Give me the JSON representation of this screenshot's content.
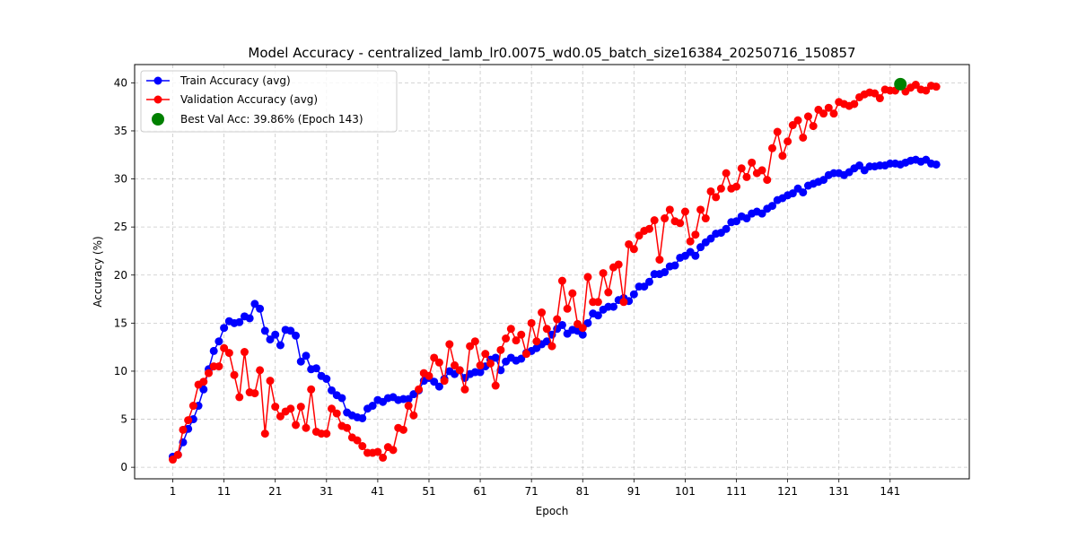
{
  "chart_data": {
    "type": "line",
    "title": "Model Accuracy - centralized_lamb_lr0.0075_wd0.05_batch_size16384_20250716_150857",
    "xlabel": "Epoch",
    "ylabel": "Accuracy (%)",
    "xlim": [
      -6.45,
      156.45
    ],
    "ylim": [
      -1.2,
      41.9
    ],
    "x_ticks": [
      1,
      11,
      21,
      31,
      41,
      51,
      61,
      71,
      81,
      91,
      101,
      111,
      121,
      131,
      141
    ],
    "y_ticks": [
      0,
      5,
      10,
      15,
      20,
      25,
      30,
      35,
      40
    ],
    "grid": true,
    "legend_position": "top-left",
    "series": [
      {
        "name": "Train Accuracy (avg)",
        "color": "#0000ff",
        "values": [
          1.1,
          1.3,
          2.6,
          4.0,
          5.0,
          6.4,
          8.1,
          10.2,
          12.1,
          13.1,
          14.5,
          15.2,
          15.0,
          15.1,
          15.7,
          15.5,
          17.0,
          16.5,
          14.2,
          13.3,
          13.8,
          12.7,
          14.3,
          14.2,
          13.7,
          11.0,
          11.6,
          10.2,
          10.3,
          9.5,
          9.2,
          8.0,
          7.5,
          7.2,
          5.7,
          5.4,
          5.2,
          5.1,
          6.1,
          6.4,
          7.0,
          6.8,
          7.2,
          7.3,
          7.0,
          7.1,
          7.1,
          7.6,
          8.0,
          9.0,
          9.3,
          8.9,
          8.4,
          9.2,
          10.0,
          9.7,
          10.1,
          9.3,
          9.7,
          9.9,
          9.9,
          10.5,
          11.2,
          11.4,
          10.1,
          11.0,
          11.4,
          11.1,
          11.3,
          11.9,
          12.1,
          12.4,
          12.8,
          13.1,
          13.8,
          14.4,
          14.8,
          13.9,
          14.3,
          14.2,
          13.8,
          15.0,
          16.0,
          15.8,
          16.4,
          16.7,
          16.7,
          17.4,
          17.6,
          17.3,
          18.0,
          18.8,
          18.8,
          19.3,
          20.1,
          20.1,
          20.3,
          20.9,
          21.0,
          21.8,
          22.0,
          22.4,
          22.0,
          22.9,
          23.4,
          23.8,
          24.3,
          24.4,
          24.8,
          25.5,
          25.6,
          26.1,
          25.9,
          26.4,
          26.6,
          26.4,
          26.9,
          27.2,
          27.8,
          28.0,
          28.3,
          28.5,
          29.0,
          28.6,
          29.3,
          29.5,
          29.7,
          29.9,
          30.4,
          30.6,
          30.6,
          30.4,
          30.7,
          31.1,
          31.4,
          30.9,
          31.3,
          31.3,
          31.4,
          31.4,
          31.6,
          31.6,
          31.5,
          31.7,
          31.9,
          32.0,
          31.8,
          32.0,
          31.6,
          31.5
        ]
      },
      {
        "name": "Validation Accuracy (avg)",
        "color": "#ff0000",
        "values": [
          0.8,
          1.3,
          3.9,
          4.9,
          6.4,
          8.6,
          8.9,
          9.8,
          10.5,
          10.5,
          12.4,
          11.9,
          9.6,
          7.3,
          12.0,
          7.8,
          7.7,
          10.1,
          3.5,
          9.0,
          6.3,
          5.3,
          5.8,
          6.1,
          4.4,
          6.3,
          4.1,
          8.1,
          3.7,
          3.5,
          3.5,
          6.1,
          5.6,
          4.3,
          4.1,
          3.1,
          2.8,
          2.2,
          1.5,
          1.5,
          1.6,
          1.0,
          2.1,
          1.8,
          4.1,
          3.9,
          6.4,
          5.4,
          8.1,
          9.8,
          9.5,
          11.4,
          10.9,
          9.0,
          12.8,
          10.6,
          10.1,
          8.1,
          12.6,
          13.1,
          10.6,
          11.8,
          10.8,
          8.5,
          12.2,
          13.4,
          14.4,
          13.2,
          13.8,
          11.8,
          15.0,
          13.1,
          16.1,
          14.4,
          12.6,
          15.4,
          19.4,
          16.5,
          18.1,
          14.9,
          14.5,
          19.8,
          17.2,
          17.2,
          20.2,
          18.2,
          20.8,
          21.1,
          17.2,
          23.2,
          22.7,
          24.1,
          24.6,
          24.8,
          25.7,
          21.6,
          25.9,
          26.8,
          25.6,
          25.4,
          26.6,
          23.5,
          24.2,
          26.8,
          25.9,
          28.7,
          28.1,
          29.0,
          30.6,
          29.0,
          29.2,
          31.1,
          30.2,
          31.7,
          30.6,
          30.9,
          29.9,
          33.2,
          34.9,
          32.4,
          33.9,
          35.6,
          36.1,
          34.3,
          36.5,
          35.5,
          37.2,
          36.8,
          37.4,
          36.8,
          38.0,
          37.8,
          37.6,
          37.8,
          38.5,
          38.8,
          39.0,
          38.9,
          38.4,
          39.3,
          39.2,
          39.2,
          39.86,
          39.1,
          39.5,
          39.8,
          39.3,
          39.2,
          39.7,
          39.6
        ]
      }
    ],
    "best_point": {
      "label": "Best Val Acc: 39.86% (Epoch 143)",
      "epoch": 143,
      "value": 39.86,
      "color": "#008000"
    }
  }
}
